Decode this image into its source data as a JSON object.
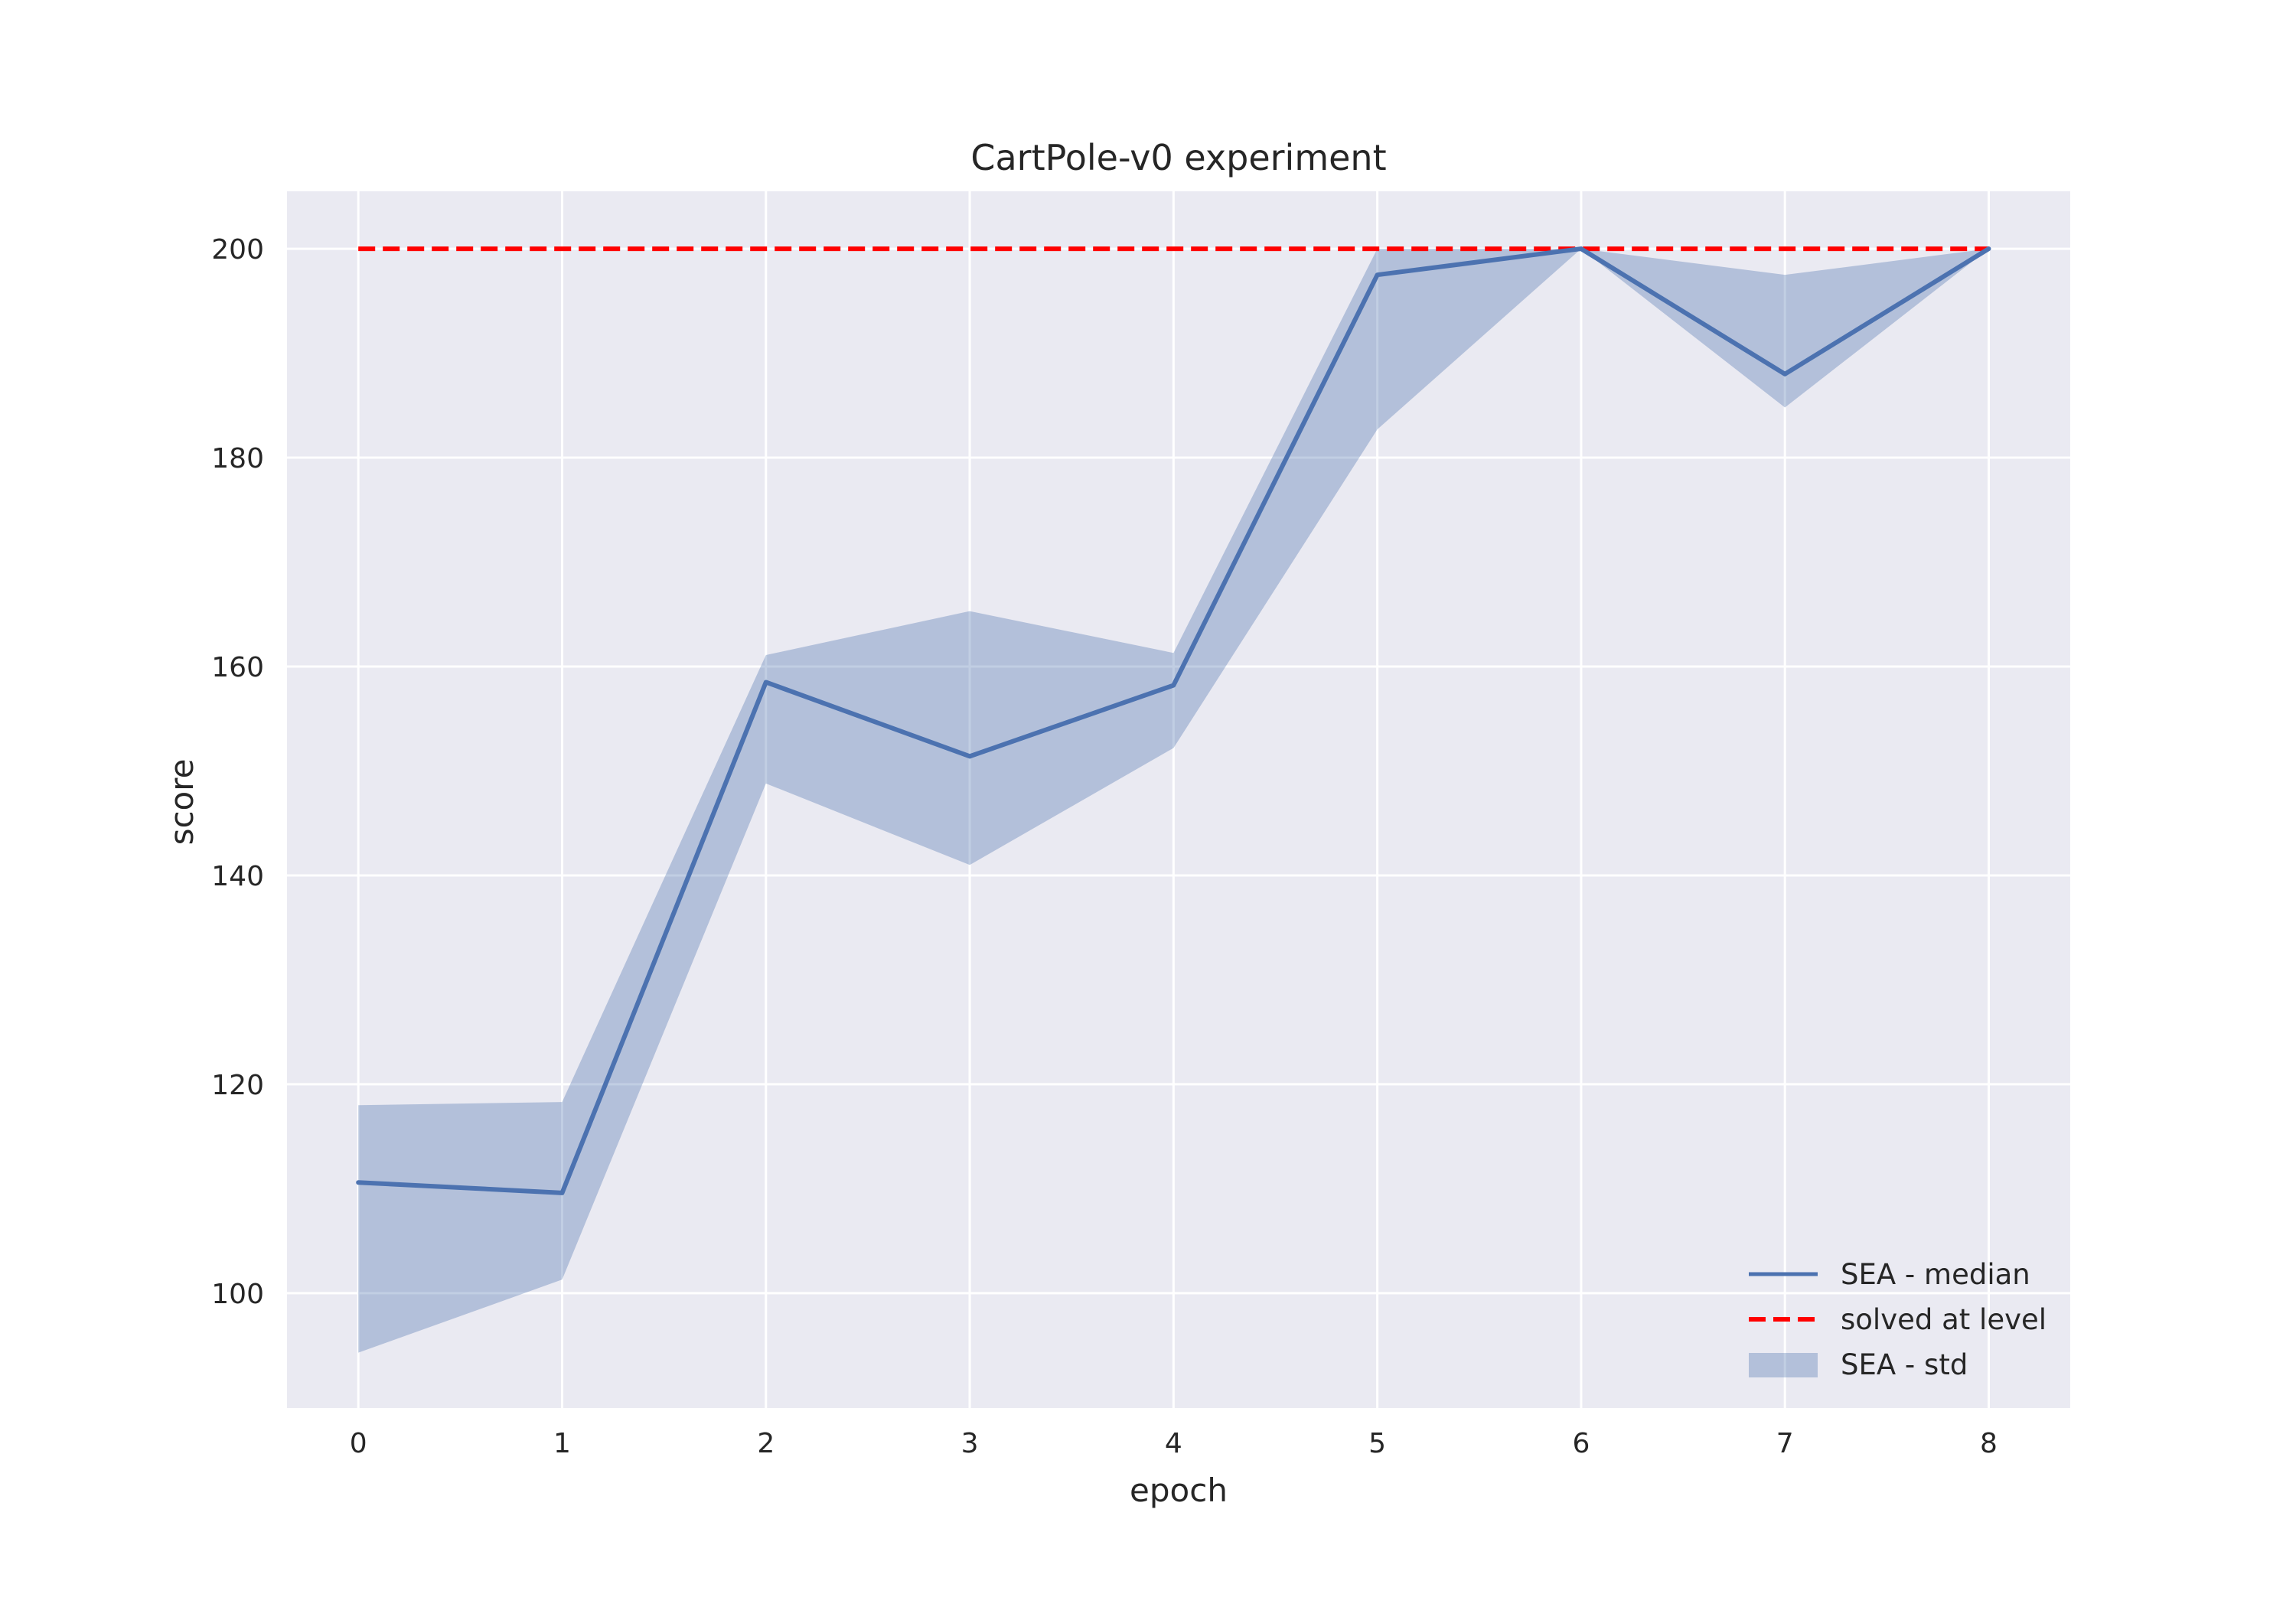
{
  "chart_data": {
    "type": "line",
    "title": "CartPole-v0 experiment",
    "xlabel": "epoch",
    "ylabel": "score",
    "x": [
      0,
      1,
      2,
      3,
      4,
      5,
      6,
      7,
      8
    ],
    "xticks": [
      "0",
      "1",
      "2",
      "3",
      "4",
      "5",
      "6",
      "7",
      "8"
    ],
    "yticks": [
      "100",
      "120",
      "140",
      "160",
      "180",
      "200"
    ],
    "xlim": [
      -0.35,
      8.4
    ],
    "ylim": [
      89,
      205.5
    ],
    "grid": true,
    "legend_position": "bottom-right",
    "series": [
      {
        "name": "SEA - median",
        "kind": "line",
        "color": "#4c72b0",
        "values": [
          110.6,
          109.6,
          158.5,
          151.4,
          158.2,
          197.5,
          200,
          188,
          200
        ]
      },
      {
        "name": "solved at level",
        "kind": "dashed-line",
        "color": "#ff0000",
        "values": [
          200,
          200,
          200,
          200,
          200,
          200,
          200,
          200,
          200
        ]
      },
      {
        "name": "SEA - std",
        "kind": "band",
        "color": "#4c72b0",
        "lower": [
          94.3,
          101.3,
          148.8,
          141.0,
          152.2,
          182.7,
          200,
          184.8,
          200
        ],
        "upper": [
          118.0,
          118.3,
          161.1,
          165.3,
          161.3,
          200,
          200,
          197.5,
          200
        ]
      }
    ],
    "colors": {
      "background": "#eaeaf2",
      "grid": "#ffffff"
    }
  }
}
